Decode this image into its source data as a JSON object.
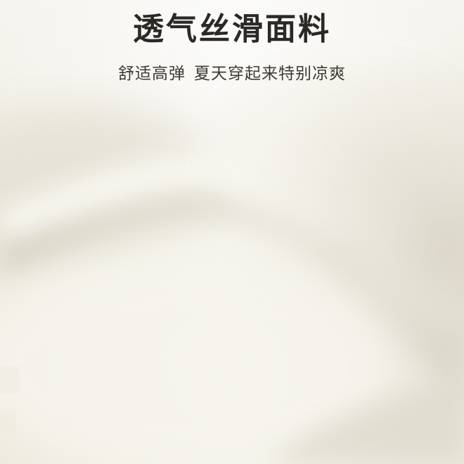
{
  "hero": {
    "title": "透气丝滑面料",
    "subtitle_left": "舒适高弹",
    "subtitle_right": "夏天穿起来特别凉爽"
  },
  "photo": {
    "subject": "cream-white-fabric-closeup",
    "palette": {
      "highlight": "#fbfaf4",
      "base": "#f1efe5",
      "shadow": "#d8d4c6",
      "deep_shadow": "#c9c4b3",
      "text_dark": "#2b2825"
    }
  }
}
